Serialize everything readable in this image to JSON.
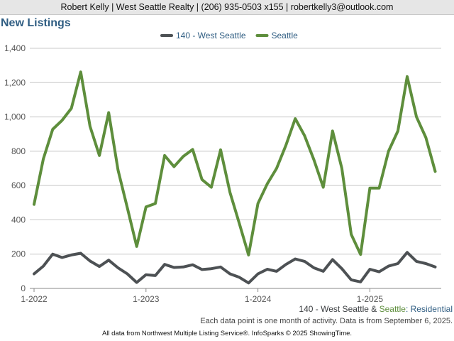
{
  "header": {
    "agent_info": "Robert Kelly | West Seattle Realty | (206) 935-0503 x155 | robertkelly3@outlook.com"
  },
  "chart_data": {
    "type": "line",
    "title": "New Listings",
    "legend_position": "top-center",
    "grid": true,
    "ylim": [
      0,
      1400
    ],
    "yticks": [
      "0",
      "200",
      "400",
      "600",
      "800",
      "1,000",
      "1,200",
      "1,400"
    ],
    "xticks": [
      "1-2022",
      "1-2023",
      "1-2024",
      "1-2025"
    ],
    "x": [
      "2022-01",
      "2022-02",
      "2022-03",
      "2022-04",
      "2022-05",
      "2022-06",
      "2022-07",
      "2022-08",
      "2022-09",
      "2022-10",
      "2022-11",
      "2022-12",
      "2023-01",
      "2023-02",
      "2023-03",
      "2023-04",
      "2023-05",
      "2023-06",
      "2023-07",
      "2023-08",
      "2023-09",
      "2023-10",
      "2023-11",
      "2023-12",
      "2024-01",
      "2024-02",
      "2024-03",
      "2024-04",
      "2024-05",
      "2024-06",
      "2024-07",
      "2024-08",
      "2024-09",
      "2024-10",
      "2024-11",
      "2024-12",
      "2025-01",
      "2025-02",
      "2025-03",
      "2025-04",
      "2025-05",
      "2025-06",
      "2025-07",
      "2025-08"
    ],
    "series": [
      {
        "name": "140 - West Seattle",
        "color": "#4d5154",
        "values": [
          85,
          130,
          200,
          180,
          195,
          205,
          160,
          128,
          165,
          120,
          85,
          35,
          80,
          75,
          140,
          122,
          125,
          138,
          110,
          115,
          125,
          85,
          65,
          32,
          85,
          112,
          100,
          140,
          172,
          158,
          120,
          100,
          168,
          115,
          50,
          38,
          112,
          97,
          130,
          145,
          210,
          158,
          145,
          125
        ]
      },
      {
        "name": "Seattle",
        "color": "#5e8e3c",
        "values": [
          490,
          755,
          928,
          980,
          1050,
          1262,
          945,
          775,
          1025,
          690,
          470,
          245,
          475,
          495,
          775,
          710,
          770,
          810,
          635,
          590,
          808,
          560,
          380,
          195,
          495,
          610,
          700,
          835,
          990,
          890,
          750,
          590,
          918,
          700,
          315,
          198,
          585,
          585,
          800,
          918,
          1235,
          1000,
          880,
          682
        ]
      }
    ]
  },
  "footer": {
    "series_label_1": "140 - West Seattle",
    "amp": " & ",
    "series_label_2": "Seattle",
    "property_type": ": Residential",
    "note": "Each data point is one month of activity. Data is from September 6, 2025.",
    "credit": "All data from Northwest Multiple Listing Service®. InfoSparks © 2025 ShowingTime."
  }
}
